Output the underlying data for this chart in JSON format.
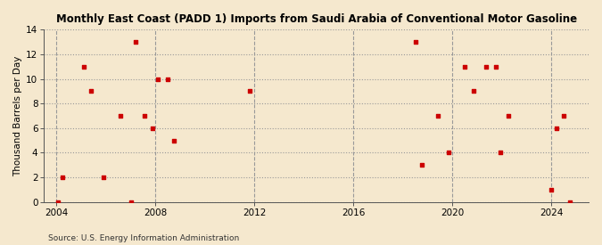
{
  "title": "Monthly East Coast (PADD 1) Imports from Saudi Arabia of Conventional Motor Gasoline",
  "ylabel": "Thousand Barrels per Day",
  "source": "Source: U.S. Energy Information Administration",
  "background_color": "#f5e8ce",
  "dot_color": "#cc0000",
  "xlim": [
    2003.5,
    2025.5
  ],
  "ylim": [
    0,
    14
  ],
  "xticks": [
    2004,
    2008,
    2012,
    2016,
    2020,
    2024
  ],
  "yticks": [
    0,
    2,
    4,
    6,
    8,
    10,
    12,
    14
  ],
  "scatter_x": [
    2004.05,
    2004.25,
    2005.1,
    2005.4,
    2005.9,
    2006.6,
    2007.0,
    2007.2,
    2007.55,
    2007.9,
    2008.1,
    2008.5,
    2008.75,
    2011.8,
    2018.5,
    2018.75,
    2019.4,
    2019.85,
    2020.5,
    2020.85,
    2021.35,
    2021.75,
    2021.95,
    2022.25,
    2024.0,
    2024.2,
    2024.5,
    2024.75
  ],
  "scatter_y": [
    0,
    2,
    11,
    9,
    2,
    7,
    0,
    13,
    7,
    6,
    10,
    10,
    5,
    9,
    13,
    3,
    7,
    4,
    11,
    9,
    11,
    11,
    4,
    7,
    1,
    6,
    7,
    0
  ]
}
